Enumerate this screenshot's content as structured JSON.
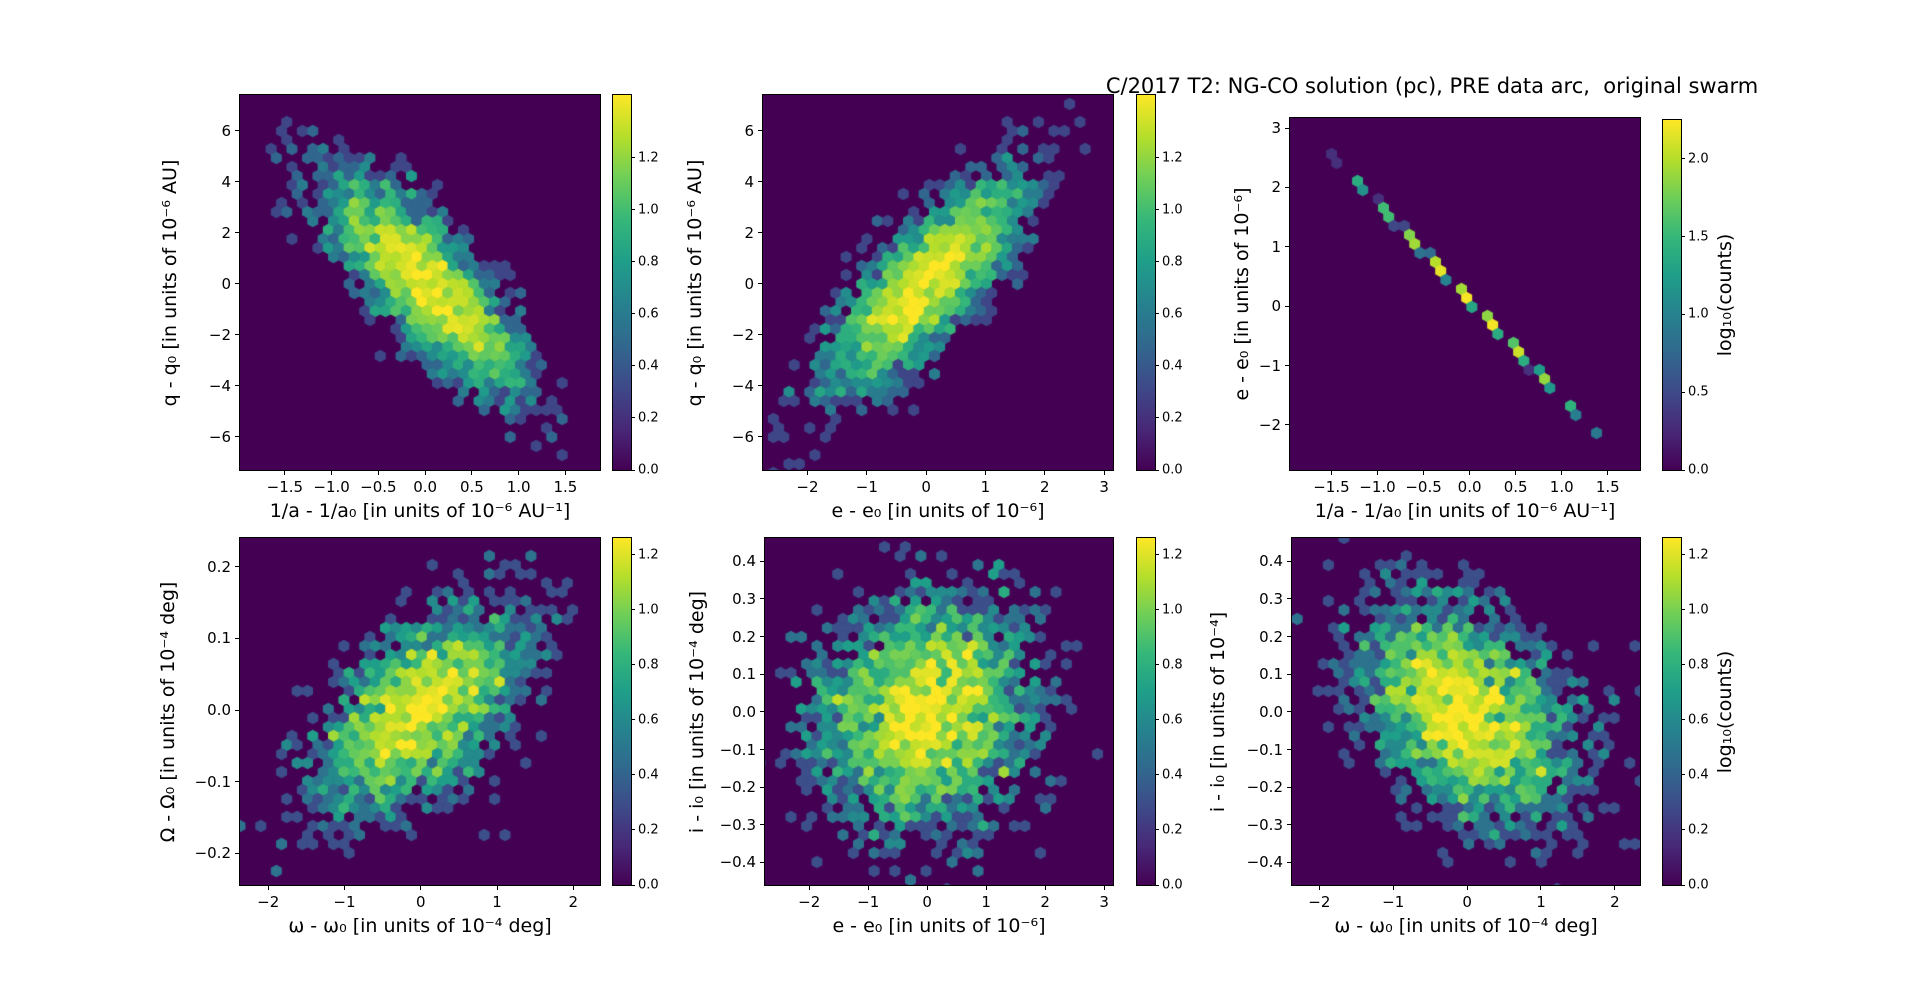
{
  "figure": {
    "title": "C/2017 T2: NG-CO solution (pc), PRE data arc,  original swarm",
    "background": "#ffffff",
    "colormap": "viridis",
    "viridis_stops": [
      "#440154",
      "#482878",
      "#3e4a89",
      "#31688e",
      "#26828e",
      "#1f9e89",
      "#35b779",
      "#6ece58",
      "#b5de2b",
      "#fde725"
    ],
    "axes_color": "#000000"
  },
  "chart_data": [
    {
      "name": "panel-q-vs-inva",
      "type": "hexbin",
      "xlabel": "1/a - 1/a₀ [in units of 10⁻⁶ AU⁻¹]",
      "ylabel": "q - q₀ [in units of 10⁻⁶ AU]",
      "xlim": [
        -1.98,
        1.87
      ],
      "ylim": [
        -7.3,
        7.4
      ],
      "x_ticks": [
        -1.5,
        -1.0,
        -0.5,
        0.0,
        0.5,
        1.0,
        1.5
      ],
      "x_tick_labels": [
        "−1.5",
        "−1.0",
        "−0.5",
        "0.0",
        "0.5",
        "1.0",
        "1.5"
      ],
      "y_ticks": [
        -6,
        -4,
        -2,
        0,
        2,
        4,
        6
      ],
      "y_tick_labels": [
        "−6",
        "−4",
        "−2",
        "0",
        "2",
        "4",
        "6"
      ],
      "colorbar": {
        "ticks": [
          0,
          0.2,
          0.4,
          0.6,
          0.8,
          1.0,
          1.2
        ],
        "tick_labels": [
          "0.0",
          "0.2",
          "0.4",
          "0.6",
          "0.8",
          "1.0",
          "1.2"
        ],
        "vmax": 1.44,
        "label": null
      },
      "distribution": {
        "cx": 0,
        "cy": 0,
        "sx": 0.55,
        "sy": 2.2,
        "rho": -0.78,
        "peak_count": 26,
        "tail": 0.9
      },
      "ylabel_dx": -70,
      "layout": {
        "plot": [
          240,
          95,
          360,
          375
        ],
        "cbar": [
          613,
          95,
          18,
          375
        ]
      }
    },
    {
      "name": "panel-q-vs-e",
      "type": "hexbin",
      "xlabel": "e - e₀ [in units of 10⁻⁶]",
      "ylabel": "q - q₀ [in units of 10⁻⁶ AU]",
      "xlim": [
        -2.75,
        3.15
      ],
      "ylim": [
        -7.3,
        7.4
      ],
      "x_ticks": [
        -2,
        -1,
        0,
        1,
        2,
        3
      ],
      "x_tick_labels": [
        "−2",
        "−1",
        "0",
        "1",
        "2",
        "3"
      ],
      "y_ticks": [
        -6,
        -4,
        -2,
        0,
        2,
        4,
        6
      ],
      "y_tick_labels": [
        "−6",
        "−4",
        "−2",
        "0",
        "2",
        "4",
        "6"
      ],
      "colorbar": {
        "ticks": [
          0,
          0.2,
          0.4,
          0.6,
          0.8,
          1.0,
          1.2
        ],
        "tick_labels": [
          "0.0",
          "0.2",
          "0.4",
          "0.6",
          "0.8",
          "1.0",
          "1.2"
        ],
        "vmax": 1.44,
        "label": null
      },
      "distribution": {
        "cx": 0,
        "cy": 0,
        "sx": 0.88,
        "sy": 2.2,
        "rho": 0.78,
        "peak_count": 26,
        "tail": 0.9
      },
      "ylabel_dx": -68,
      "layout": {
        "plot": [
          763,
          95,
          350,
          375
        ],
        "cbar": [
          1137,
          95,
          18,
          375
        ]
      }
    },
    {
      "name": "panel-e-vs-inva",
      "type": "hexbin",
      "xlabel": "1/a - 1/a₀ [in units of 10⁻⁶ AU⁻¹]",
      "ylabel": "e - e₀ [in units of 10⁻⁶]",
      "xlim": [
        -1.95,
        1.85
      ],
      "ylim": [
        -2.76,
        3.17
      ],
      "x_ticks": [
        -1.5,
        -1.0,
        -0.5,
        0.0,
        0.5,
        1.0,
        1.5
      ],
      "x_tick_labels": [
        "−1.5",
        "−1.0",
        "−0.5",
        "0.0",
        "0.5",
        "1.0",
        "1.5"
      ],
      "y_ticks": [
        -2,
        -1,
        0,
        1,
        2,
        3
      ],
      "y_tick_labels": [
        "−2",
        "−1",
        "0",
        "1",
        "2",
        "3"
      ],
      "colorbar": {
        "ticks": [
          0,
          0.5,
          1.0,
          1.5,
          2.0
        ],
        "tick_labels": [
          "0.0",
          "0.5",
          "1.0",
          "1.5",
          "2.0"
        ],
        "vmax": 2.25,
        "label": "log₁₀(counts)"
      },
      "distribution": {
        "cx": 0,
        "cy": 0.1,
        "sx": 0.58,
        "sy": 0.949,
        "rho": -0.9993,
        "peak_count": 190,
        "tail": 0
      },
      "ylabel_dx": -48,
      "layout": {
        "plot": [
          1290,
          118,
          350,
          352
        ],
        "cbar": [
          1663,
          120,
          18,
          350
        ]
      }
    },
    {
      "name": "panel-capomega-vs-omega",
      "type": "hexbin",
      "xlabel": "ω - ω₀ [in units of 10⁻⁴ deg]",
      "ylabel": "Ω - Ω₀ [in units of 10⁻⁴ deg]",
      "xlim": [
        -2.37,
        2.35
      ],
      "ylim": [
        -0.244,
        0.24
      ],
      "x_ticks": [
        -2,
        -1,
        0,
        1,
        2
      ],
      "x_tick_labels": [
        "−2",
        "−1",
        "0",
        "1",
        "2"
      ],
      "y_ticks": [
        -0.2,
        -0.1,
        0.0,
        0.1,
        0.2
      ],
      "y_tick_labels": [
        "−0.2",
        "−0.1",
        "0.0",
        "0.1",
        "0.2"
      ],
      "colorbar": {
        "ticks": [
          0,
          0.2,
          0.4,
          0.6,
          0.8,
          1.0,
          1.2
        ],
        "tick_labels": [
          "0.0",
          "0.2",
          "0.4",
          "0.6",
          "0.8",
          "1.0",
          "1.2"
        ],
        "vmax": 1.26,
        "label": null
      },
      "distribution": {
        "cx": 0,
        "cy": 0,
        "sx": 0.72,
        "sy": 0.075,
        "rho": 0.55,
        "peak_count": 17,
        "tail": 0.9
      },
      "ylabel_dx": -72,
      "layout": {
        "plot": [
          240,
          538,
          360,
          347
        ],
        "cbar": [
          613,
          538,
          18,
          347
        ]
      }
    },
    {
      "name": "panel-i-vs-e",
      "type": "hexbin",
      "xlabel": "e - e₀ [in units of 10⁻⁶]",
      "ylabel": "i - i₀ [in units of 10⁻⁴ deg]",
      "xlim": [
        -2.75,
        3.15
      ],
      "ylim": [
        -0.46,
        0.462
      ],
      "x_ticks": [
        -2,
        -1,
        0,
        1,
        2,
        3
      ],
      "x_tick_labels": [
        "−2",
        "−1",
        "0",
        "1",
        "2",
        "3"
      ],
      "y_ticks": [
        -0.4,
        -0.3,
        -0.2,
        -0.1,
        0.0,
        0.1,
        0.2,
        0.3,
        0.4
      ],
      "y_tick_labels": [
        "−0.4",
        "−0.3",
        "−0.2",
        "−0.1",
        "0.0",
        "0.1",
        "0.2",
        "0.3",
        "0.4"
      ],
      "colorbar": {
        "ticks": [
          0,
          0.2,
          0.4,
          0.6,
          0.8,
          1.0,
          1.2
        ],
        "tick_labels": [
          "0.0",
          "0.2",
          "0.4",
          "0.6",
          "0.8",
          "1.0",
          "1.2"
        ],
        "vmax": 1.26,
        "label": null
      },
      "distribution": {
        "cx": 0,
        "cy": 0,
        "sx": 0.92,
        "sy": 0.158,
        "rho": 0.13,
        "peak_count": 17,
        "tail": 0.9
      },
      "ylabel_dx": -68,
      "layout": {
        "plot": [
          765,
          538,
          348,
          347
        ],
        "cbar": [
          1137,
          538,
          18,
          347
        ]
      }
    },
    {
      "name": "panel-i-vs-omega",
      "type": "hexbin",
      "xlabel": "ω - ω₀ [in units of 10⁻⁴ deg]",
      "ylabel": "i - i₀ [in units of 10⁻⁴]",
      "xlim": [
        -2.37,
        2.34
      ],
      "ylim": [
        -0.46,
        0.462
      ],
      "x_ticks": [
        -2,
        -1,
        0,
        1,
        2
      ],
      "x_tick_labels": [
        "−2",
        "−1",
        "0",
        "1",
        "2"
      ],
      "y_ticks": [
        -0.4,
        -0.3,
        -0.2,
        -0.1,
        0.0,
        0.1,
        0.2,
        0.3,
        0.4
      ],
      "y_tick_labels": [
        "−0.4",
        "−0.3",
        "−0.2",
        "−0.1",
        "0.0",
        "0.1",
        "0.2",
        "0.3",
        "0.4"
      ],
      "colorbar": {
        "ticks": [
          0,
          0.2,
          0.4,
          0.6,
          0.8,
          1.0,
          1.2
        ],
        "tick_labels": [
          "0.0",
          "0.2",
          "0.4",
          "0.6",
          "0.8",
          "1.0",
          "1.2"
        ],
        "vmax": 1.26,
        "label": "log₁₀(counts)"
      },
      "distribution": {
        "cx": 0,
        "cy": 0,
        "sx": 0.75,
        "sy": 0.155,
        "rho": -0.38,
        "peak_count": 17,
        "tail": 0.9
      },
      "ylabel_dx": -74,
      "layout": {
        "plot": [
          1292,
          538,
          348,
          347
        ],
        "cbar": [
          1663,
          538,
          18,
          347
        ]
      }
    }
  ]
}
